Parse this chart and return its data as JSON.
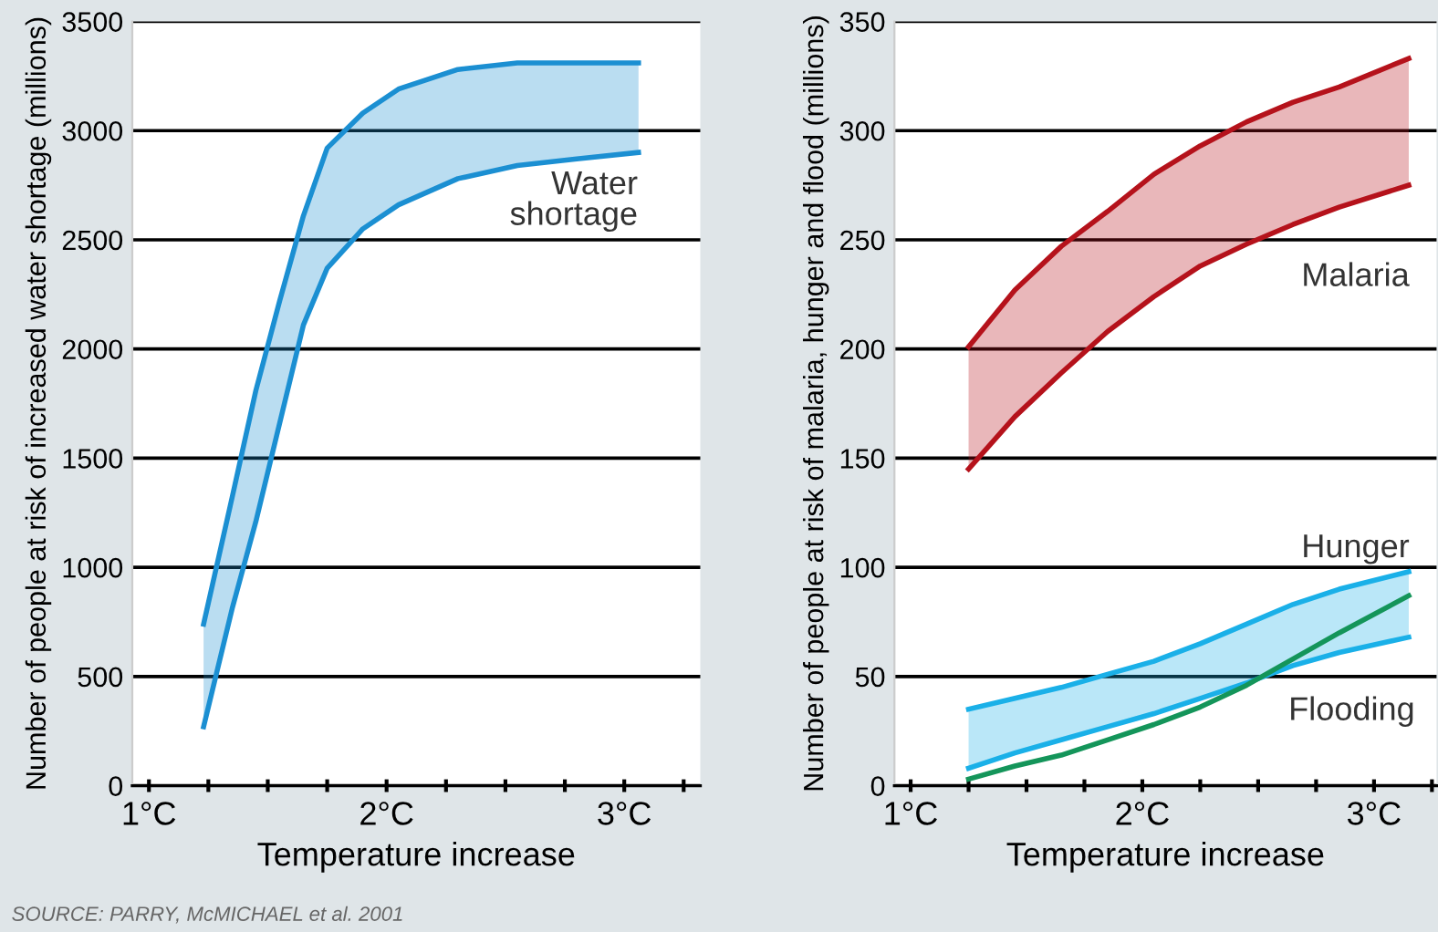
{
  "chart_data": [
    {
      "type": "line",
      "xlabel": "Temperature increase",
      "ylabel": "Number of people at risk of increased water shortage (millions)",
      "xlim": [
        0.93,
        3.32
      ],
      "xticks": [
        {
          "value": 1,
          "label": "1°C"
        },
        {
          "value": 1.25,
          "label": null
        },
        {
          "value": 1.5,
          "label": null
        },
        {
          "value": 1.75,
          "label": null
        },
        {
          "value": 2,
          "label": "2°C"
        },
        {
          "value": 2.25,
          "label": null
        },
        {
          "value": 2.5,
          "label": null
        },
        {
          "value": 2.75,
          "label": null
        },
        {
          "value": 3,
          "label": "3°C"
        },
        {
          "value": 3.25,
          "label": null
        }
      ],
      "ylim": [
        0,
        3500
      ],
      "yticks": [
        0,
        500,
        1000,
        1500,
        2000,
        2500,
        3000,
        3500
      ],
      "grid": "y",
      "series": [
        {
          "color": "#1b8fd2",
          "x": [
            1.23,
            1.35,
            1.45,
            1.55,
            1.65,
            1.75,
            1.9,
            2.05,
            2.3,
            2.55,
            2.8,
            3.06
          ],
          "values": [
            740,
            1320,
            1810,
            2220,
            2610,
            2920,
            3080,
            3190,
            3280,
            3310,
            3310,
            3310
          ],
          "upper": [
            740,
            1320,
            1810,
            2220,
            2610,
            2920,
            3080,
            3190,
            3280,
            3310,
            3310,
            3310
          ],
          "lower": [
            270,
            810,
            1210,
            1660,
            2110,
            2370,
            2550,
            2660,
            2780,
            2840,
            2870,
            2900
          ]
        },
        {
          "color": "#1b8fd2",
          "x": [
            1.23,
            1.35,
            1.45,
            1.55,
            1.65,
            1.75,
            1.9,
            2.05,
            2.3,
            2.55,
            2.8,
            3.06
          ],
          "values": [
            270,
            810,
            1210,
            1660,
            2110,
            2370,
            2550,
            2660,
            2780,
            2840,
            2870,
            2900
          ]
        }
      ],
      "annotations": [
        "Water\nshortage",
        "SOURCE: PARRY, McMICHAEL et al. 2001"
      ]
    },
    {
      "type": "line",
      "xlabel": "Temperature increase",
      "ylabel": "Number of people at risk of malaria, hunger and flood (millions)",
      "xlim": [
        0.93,
        3.27
      ],
      "xticks": [
        {
          "value": 1,
          "label": "1°C"
        },
        {
          "value": 1.25,
          "label": null
        },
        {
          "value": 1.5,
          "label": null
        },
        {
          "value": 1.75,
          "label": null
        },
        {
          "value": 2,
          "label": "2°C"
        },
        {
          "value": 2.25,
          "label": null
        },
        {
          "value": 2.5,
          "label": null
        },
        {
          "value": 2.75,
          "label": null
        },
        {
          "value": 3,
          "label": "3°C"
        },
        {
          "value": 3.25,
          "label": null
        }
      ],
      "ylim": [
        0,
        350
      ],
      "yticks": [
        0,
        50,
        100,
        150,
        200,
        250,
        300,
        350
      ],
      "grid": "y",
      "series": [
        {
          "color": "#b5121b",
          "x": [
            1.25,
            1.45,
            1.65,
            1.85,
            2.05,
            2.25,
            2.45,
            2.65,
            2.85,
            3.15
          ],
          "values": [
            201,
            227,
            247,
            263,
            280,
            293,
            304,
            313,
            320,
            333
          ],
          "upper": [
            201,
            227,
            247,
            263,
            280,
            293,
            304,
            313,
            320,
            333
          ],
          "lower": [
            145,
            169,
            189,
            208,
            224,
            238,
            248,
            257,
            265,
            275
          ]
        },
        {
          "color": "#b5121b",
          "x": [
            1.25,
            1.45,
            1.65,
            1.85,
            2.05,
            2.25,
            2.45,
            2.65,
            2.85,
            3.15
          ],
          "values": [
            145,
            169,
            189,
            208,
            224,
            238,
            248,
            257,
            265,
            275
          ]
        },
        {
          "color": "#1ab0e8",
          "x": [
            1.25,
            1.45,
            1.65,
            1.85,
            2.05,
            2.25,
            2.45,
            2.65,
            2.85,
            3.15
          ],
          "values": [
            35,
            40,
            45,
            51,
            57,
            65,
            74,
            83,
            90,
            98
          ],
          "upper": [
            35,
            40,
            45,
            51,
            57,
            65,
            74,
            83,
            90,
            98
          ],
          "lower": [
            8,
            15,
            21,
            27,
            33,
            40,
            47,
            55,
            61,
            68
          ]
        },
        {
          "color": "#1ab0e8",
          "x": [
            1.25,
            1.45,
            1.65,
            1.85,
            2.05,
            2.25,
            2.45,
            2.65,
            2.85,
            3.15
          ],
          "values": [
            8,
            15,
            21,
            27,
            33,
            40,
            47,
            55,
            61,
            68
          ]
        },
        {
          "color": "#14955a",
          "x": [
            1.25,
            1.45,
            1.65,
            1.85,
            2.05,
            2.25,
            2.45,
            2.65,
            2.85,
            3.15
          ],
          "values": [
            3,
            9,
            14,
            21,
            28,
            36,
            46,
            58,
            70,
            87
          ]
        }
      ],
      "annotations": [
        "Malaria",
        "Hunger",
        "Flooding"
      ]
    }
  ]
}
